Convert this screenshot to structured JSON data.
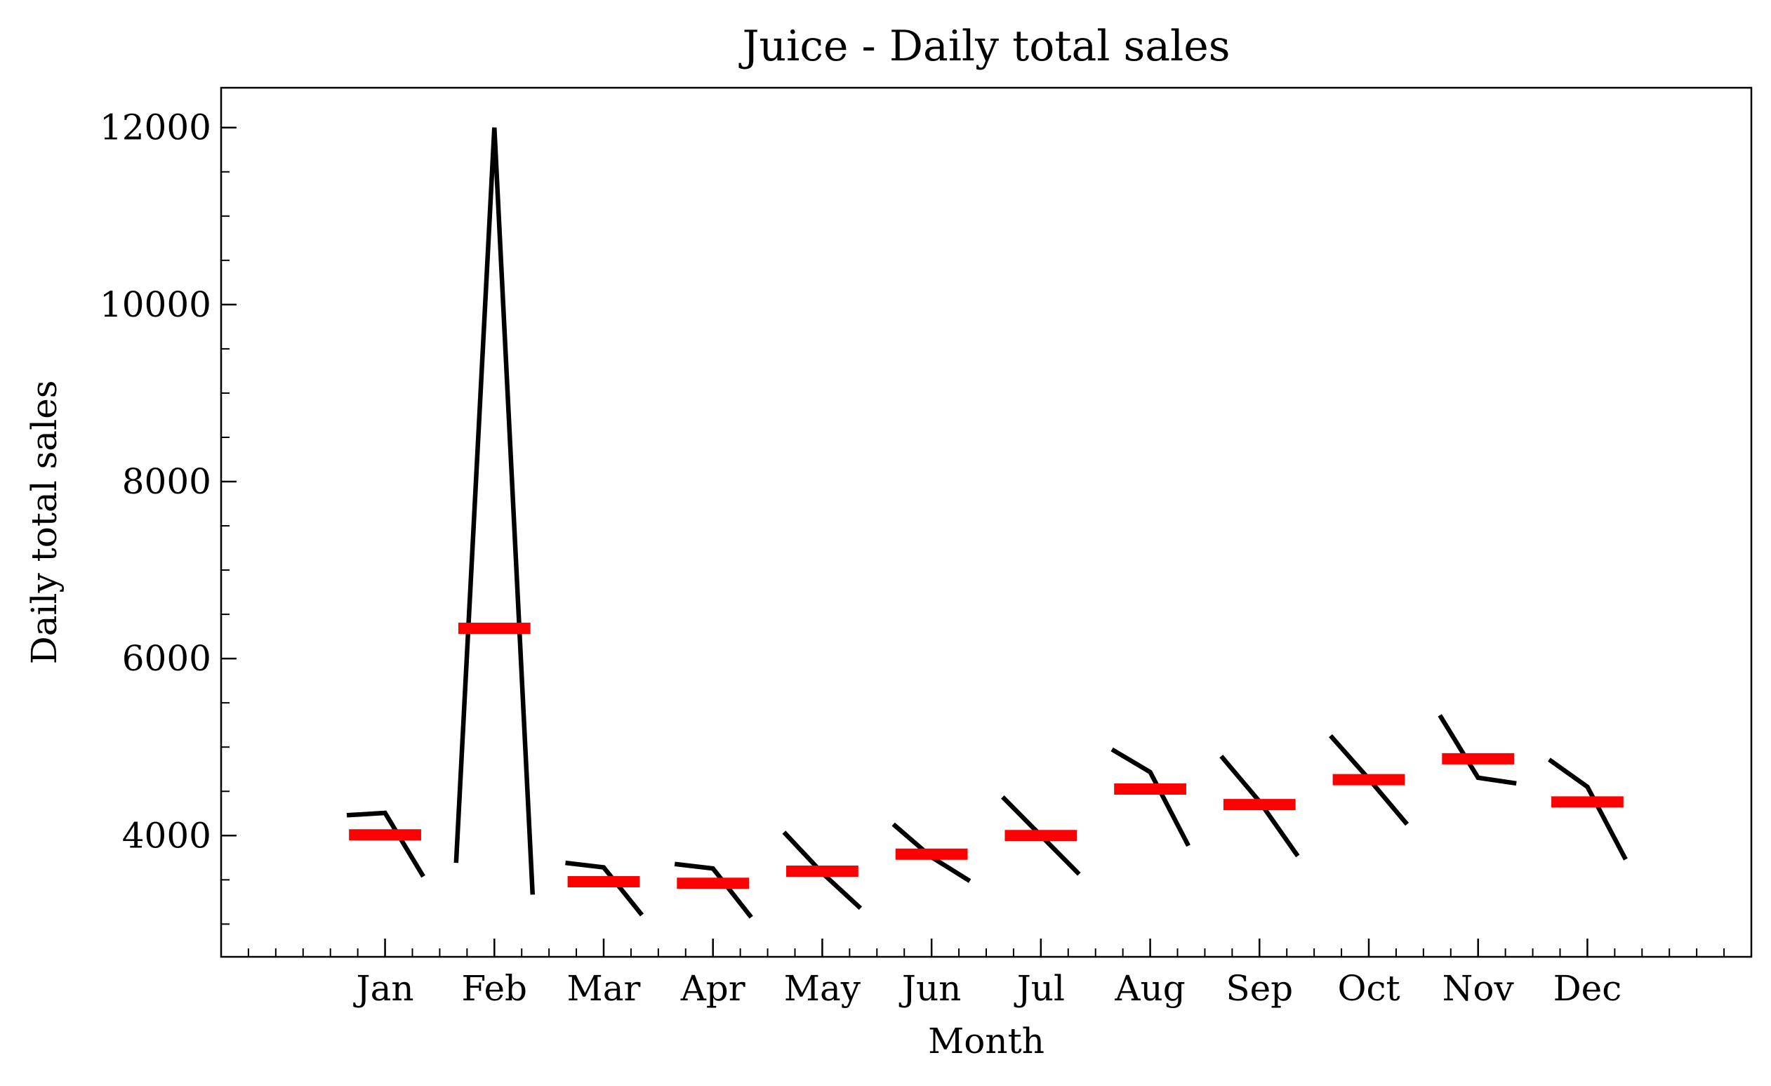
{
  "chart_data": {
    "type": "month_plot",
    "title": "Juice - Daily total sales",
    "xlabel": "Month",
    "ylabel": "Daily total sales",
    "categories": [
      "Jan",
      "Feb",
      "Mar",
      "Apr",
      "May",
      "Jun",
      "Jul",
      "Aug",
      "Sep",
      "Oct",
      "Nov",
      "Dec"
    ],
    "subseries": [
      [
        4230,
        4256,
        3538
      ],
      [
        3692,
        12000,
        3333
      ],
      [
        3692,
        3641,
        3103
      ],
      [
        3679,
        3628,
        3077
      ],
      [
        4038,
        3577,
        3179
      ],
      [
        4128,
        3756,
        3487
      ],
      [
        4436,
        4000,
        3564
      ],
      [
        4974,
        4718,
        3885
      ],
      [
        4897,
        4385,
        3769
      ],
      [
        5128,
        4641,
        4128
      ],
      [
        5359,
        4654,
        4590
      ],
      [
        4859,
        4551,
        3731
      ]
    ],
    "means": [
      4008,
      6342,
      3479,
      3461,
      3598,
      3790,
      4000,
      4526,
      4350,
      4632,
      4868,
      4380
    ],
    "line_color": "#000000",
    "mean_color": "#ff0000",
    "ylim": [
      2630,
      12450
    ],
    "yticks": [
      4000,
      6000,
      8000,
      10000,
      12000
    ]
  }
}
